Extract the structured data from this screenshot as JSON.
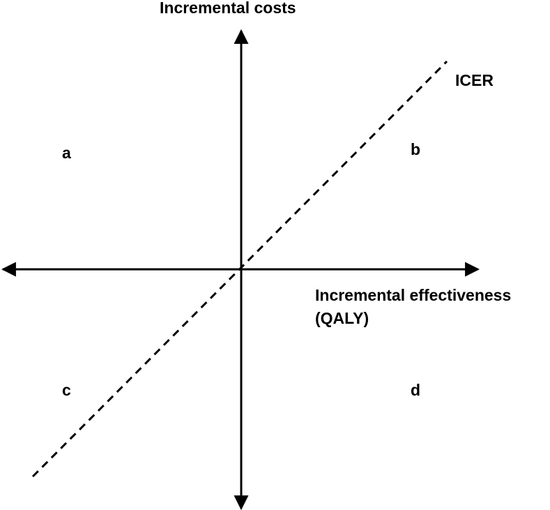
{
  "diagram": {
    "y_axis_label": "Incremental costs",
    "x_axis_label_line1": "Incremental effectiveness",
    "x_axis_label_line2": "(QALY)",
    "icer_label": "ICER",
    "quadrants": {
      "top_left": "a",
      "top_right": "b",
      "bottom_left": "c",
      "bottom_right": "d"
    },
    "colors": {
      "line": "#000000",
      "background": "#ffffff"
    }
  }
}
